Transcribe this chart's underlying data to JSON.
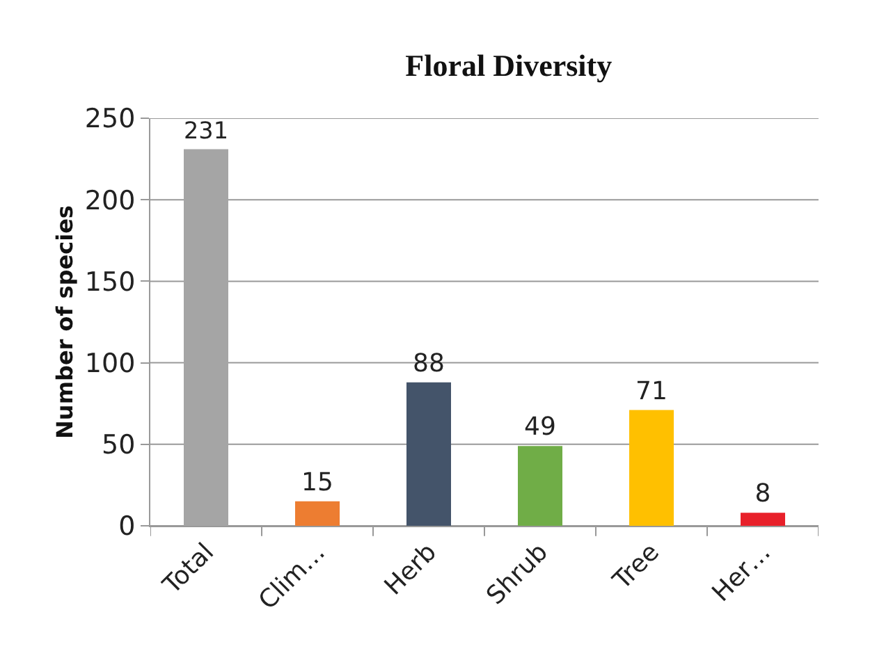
{
  "chart_data": {
    "type": "bar",
    "title": "Floral Diversity",
    "ylabel": "Number of species",
    "categories": [
      "Total",
      "Clim…",
      "Herb",
      "Shrub",
      "Tree",
      "Her…"
    ],
    "values": [
      231,
      15,
      88,
      49,
      71,
      8
    ],
    "colors": [
      "#a5a5a5",
      "#ed7d31",
      "#44546a",
      "#70ad47",
      "#ffc000",
      "#e8202a"
    ],
    "ylim": [
      0,
      250
    ],
    "yticks": [
      0,
      50,
      100,
      150,
      200,
      250
    ],
    "grid": "y",
    "data_labels": true
  }
}
